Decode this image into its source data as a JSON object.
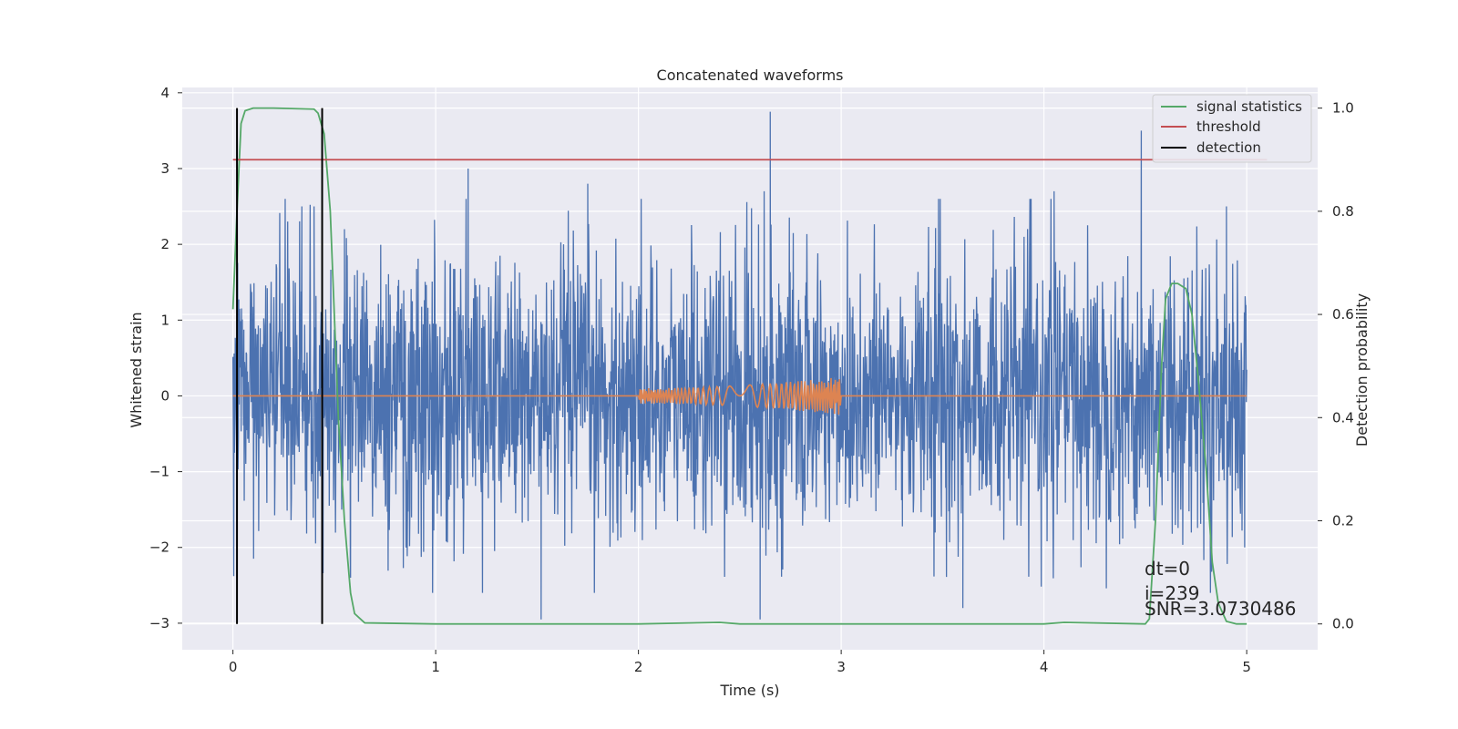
{
  "chart_data": {
    "type": "line",
    "title": "Concatenated waveforms",
    "xlabel": "Time (s)",
    "ylabel_left": "Whitened strain",
    "ylabel_right": "Detection probability",
    "xlim": [
      -0.25,
      5.35
    ],
    "ylim_left": [
      -3.35,
      4.07
    ],
    "ylim_right": [
      -0.05,
      1.04
    ],
    "x_ticks": [
      0,
      1,
      2,
      3,
      4,
      5
    ],
    "x_tick_labels": [
      "0",
      "1",
      "2",
      "3",
      "4",
      "5"
    ],
    "y_left_ticks": [
      -3,
      -2,
      -1,
      0,
      1,
      2,
      3,
      4
    ],
    "y_left_tick_labels": [
      "−3",
      "−2",
      "−1",
      "0",
      "1",
      "2",
      "3",
      "4"
    ],
    "y_right_ticks": [
      0.0,
      0.2,
      0.4,
      0.6,
      0.8,
      1.0
    ],
    "y_right_tick_labels": [
      "0.0",
      "0.2",
      "0.4",
      "0.6",
      "0.8",
      "1.0"
    ],
    "grid": true,
    "legend_position": "top-right",
    "series": [
      {
        "name": "",
        "axis": "left",
        "kind": "noise",
        "color": "#4c72b0",
        "x_range": [
          0,
          5
        ],
        "amplitude_sd": 0.9,
        "peaks": [
          {
            "x": 0.27,
            "y": 2.3
          },
          {
            "x": 0.34,
            "y": 2.5
          },
          {
            "x": 0.4,
            "y": 2.5
          },
          {
            "x": 0.55,
            "y": 2.2
          },
          {
            "x": 1.16,
            "y": 3.0
          },
          {
            "x": 1.75,
            "y": 2.8
          },
          {
            "x": 2.62,
            "y": 2.7
          },
          {
            "x": 2.65,
            "y": 3.75
          },
          {
            "x": 3.48,
            "y": 2.6
          },
          {
            "x": 4.05,
            "y": 2.7
          },
          {
            "x": 4.48,
            "y": 3.5
          },
          {
            "x": 4.9,
            "y": 2.5
          }
        ],
        "troughs": [
          {
            "x": 0.02,
            "y": -2.4
          },
          {
            "x": 1.52,
            "y": -2.95
          },
          {
            "x": 2.6,
            "y": -2.95
          },
          {
            "x": 3.6,
            "y": -2.8
          },
          {
            "x": 0.58,
            "y": -2.4
          },
          {
            "x": 4.99,
            "y": -2.0
          }
        ]
      },
      {
        "name": "",
        "axis": "left",
        "kind": "chirp",
        "color": "#dd8452",
        "x_range": [
          0,
          5
        ],
        "chirp_range": [
          2.0,
          3.0
        ],
        "amplitude_start": 0.1,
        "amplitude_end": 0.25
      },
      {
        "name": "signal statistics",
        "axis": "right",
        "color": "#55a868",
        "x": [
          0,
          0.02,
          0.04,
          0.06,
          0.1,
          0.2,
          0.4,
          0.42,
          0.45,
          0.48,
          0.5,
          0.52,
          0.55,
          0.58,
          0.6,
          0.65,
          1.0,
          2.0,
          2.4,
          2.5,
          3.0,
          4.0,
          4.1,
          4.5,
          4.52,
          4.55,
          4.58,
          4.6,
          4.63,
          4.66,
          4.7,
          4.73,
          4.76,
          4.8,
          4.83,
          4.86,
          4.9,
          4.95,
          5.0
        ],
        "y": [
          0.61,
          0.8,
          0.97,
          0.995,
          1.0,
          1.0,
          0.998,
          0.99,
          0.95,
          0.8,
          0.6,
          0.4,
          0.2,
          0.06,
          0.02,
          0.002,
          0.0,
          0.0,
          0.003,
          0.0,
          0.0,
          0.0,
          0.003,
          0.0,
          0.01,
          0.2,
          0.5,
          0.63,
          0.66,
          0.66,
          0.65,
          0.6,
          0.48,
          0.3,
          0.12,
          0.04,
          0.005,
          0.0,
          0.0
        ]
      },
      {
        "name": "threshold",
        "axis": "right",
        "color": "#c44e52",
        "x": [
          0,
          5.1
        ],
        "y": [
          0.9,
          0.9
        ]
      },
      {
        "name": "detection",
        "axis": "right",
        "color": "#000000",
        "segments": [
          {
            "x": 0.02,
            "y": [
              0.0,
              1.0
            ]
          },
          {
            "x": 0.44,
            "y": [
              0.0,
              1.0
            ]
          }
        ]
      }
    ],
    "annotations": [
      "dt=0",
      "i=239",
      "SNR=3.0730486"
    ]
  }
}
